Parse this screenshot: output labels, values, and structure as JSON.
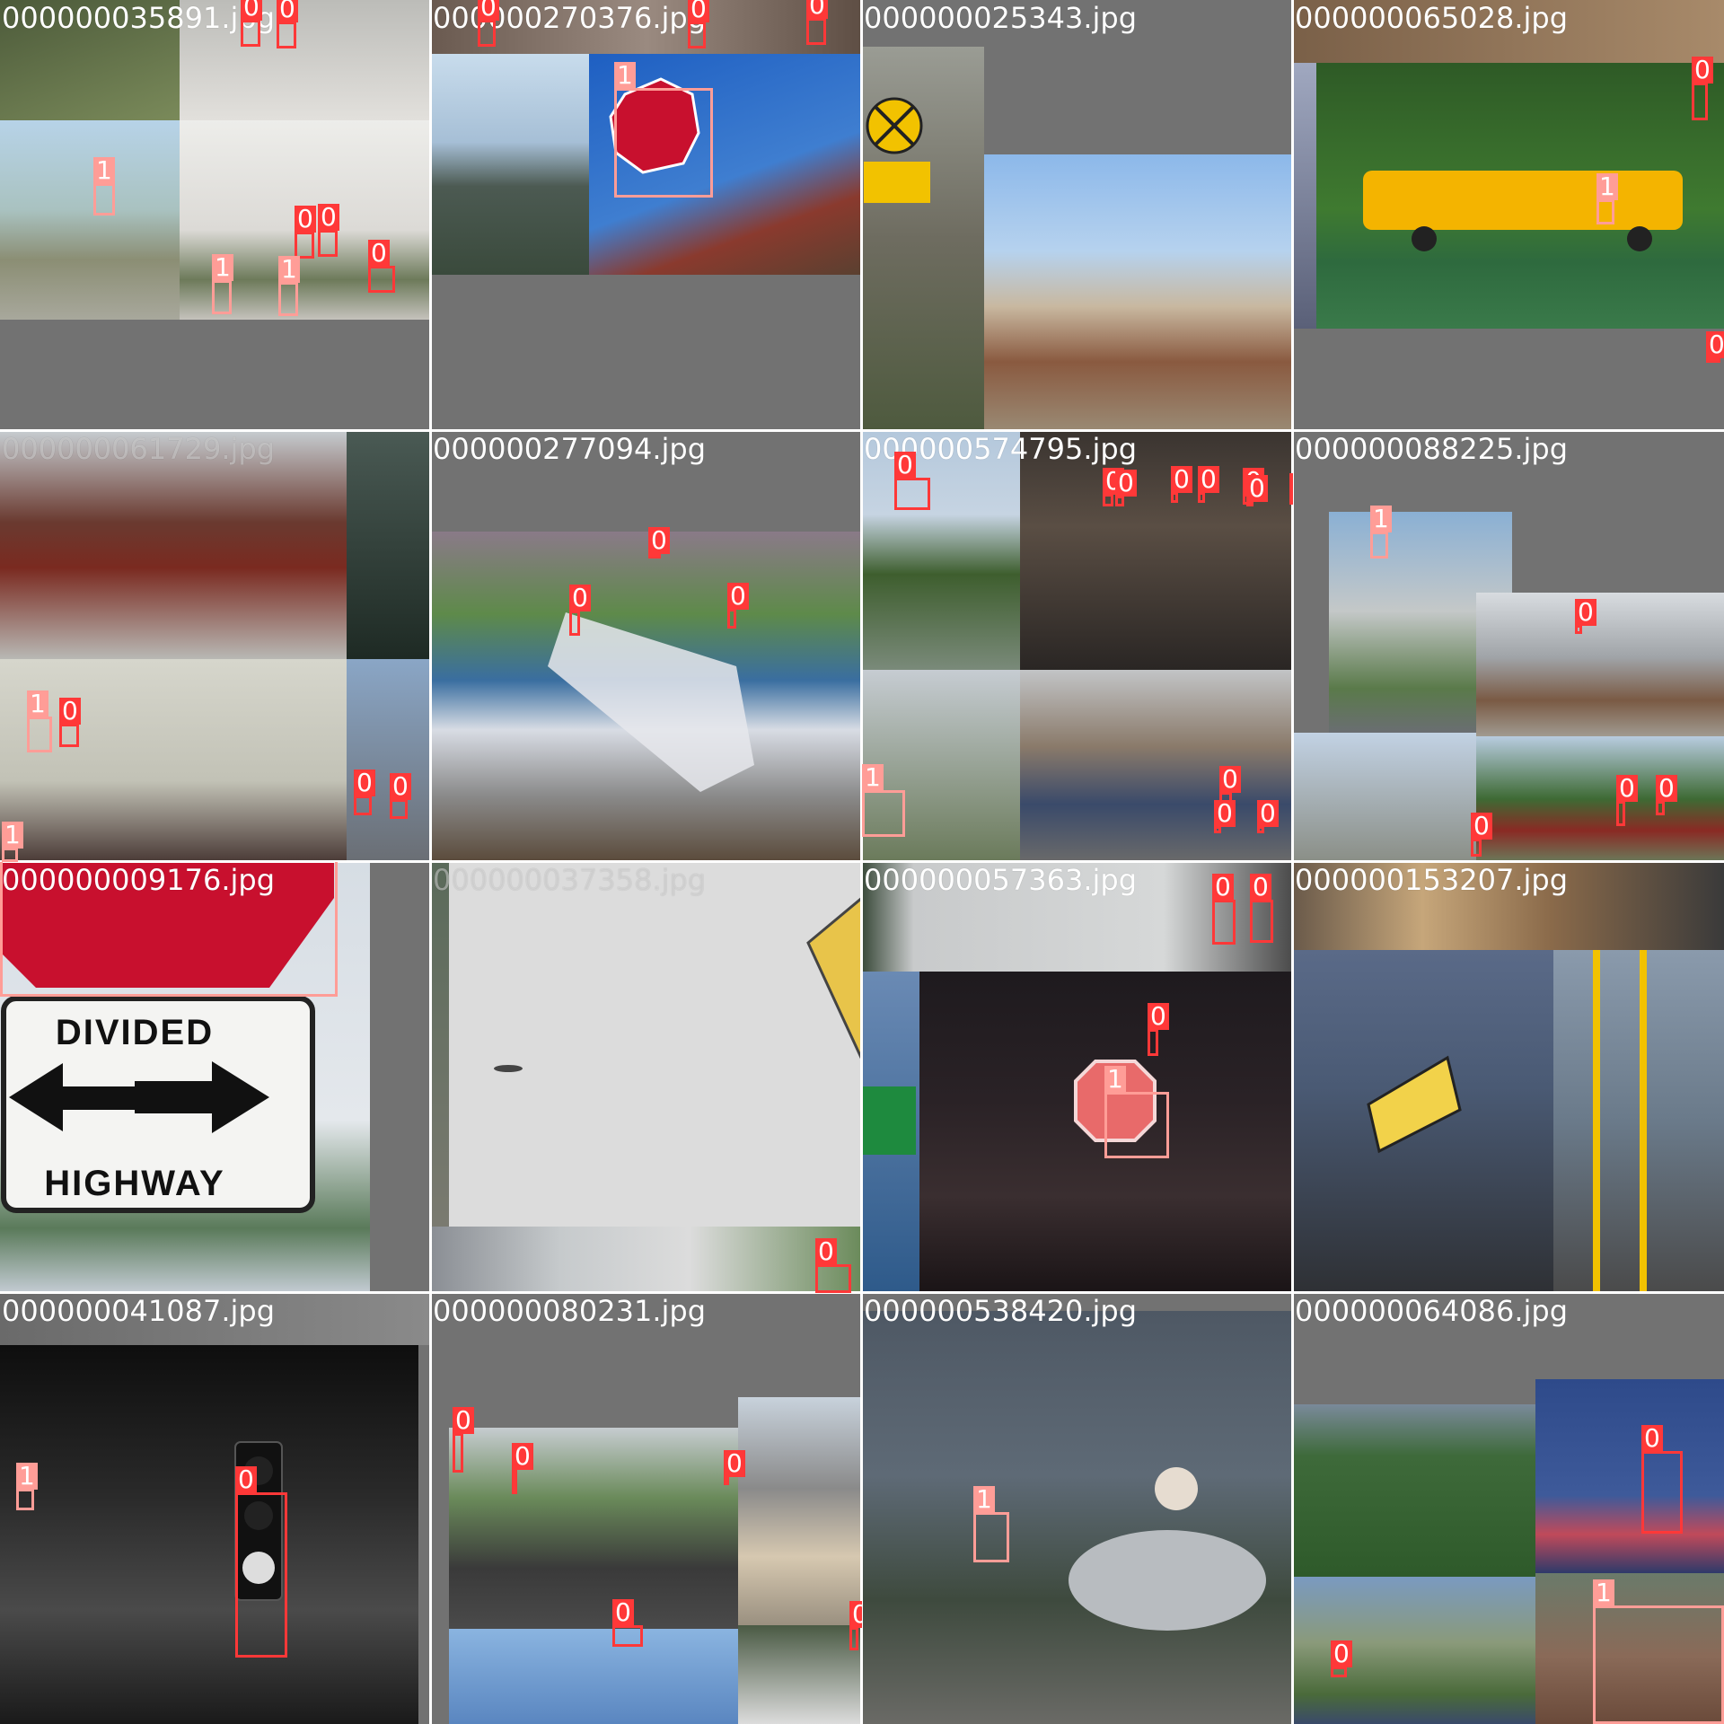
{
  "palette": {
    "class_0": "#ff3838",
    "class_1": "#ff9d97",
    "pad_gray": "#727272"
  },
  "tiles": [
    {
      "filename": "000000035891.jpg",
      "images": [
        {
          "color": "#5a6a3e"
        },
        {
          "color": "#cfcfcc"
        },
        {
          "color": "#8a9a6a"
        },
        {
          "color": "#d8d6d2"
        }
      ],
      "boxes": [
        {
          "cls": "0"
        },
        {
          "cls": "0"
        },
        {
          "cls": "1"
        },
        {
          "cls": "0"
        },
        {
          "cls": "0"
        },
        {
          "cls": "1"
        },
        {
          "cls": "1"
        },
        {
          "cls": "0"
        }
      ]
    },
    {
      "filename": "000000270376.jpg",
      "images": [
        {
          "color": "#5f6e80"
        },
        {
          "color": "#3f6eb5"
        },
        {
          "color": "#6b7d57"
        }
      ],
      "boxes": [
        {
          "cls": "0"
        },
        {
          "cls": "0"
        },
        {
          "cls": "0"
        },
        {
          "cls": "1"
        }
      ]
    },
    {
      "filename": "000000025343.jpg",
      "images": [
        {
          "color": "#7a7766"
        },
        {
          "color": "#8fb5e0"
        }
      ],
      "boxes": []
    },
    {
      "filename": "000000065028.jpg",
      "images": [
        {
          "color": "#3a6a2e"
        }
      ],
      "boxes": [
        {
          "cls": "0"
        },
        {
          "cls": "1"
        },
        {
          "cls": "0"
        }
      ]
    },
    {
      "filename": "000000061729.jpg",
      "images": [
        {
          "color": "#6b6a68"
        },
        {
          "color": "#26352d"
        },
        {
          "color": "#c7c6bd"
        },
        {
          "color": "#9e9c96"
        }
      ],
      "boxes": [
        {
          "cls": "1"
        },
        {
          "cls": "0"
        },
        {
          "cls": "0"
        },
        {
          "cls": "0"
        },
        {
          "cls": "1"
        }
      ]
    },
    {
      "filename": "000000277094.jpg",
      "images": [
        {
          "color": "#6f7a7c"
        }
      ],
      "boxes": [
        {
          "cls": "0"
        },
        {
          "cls": "0"
        },
        {
          "cls": "0"
        }
      ]
    },
    {
      "filename": "000000574795.jpg",
      "images": [
        {
          "color": "#a9c0d6"
        },
        {
          "color": "#3a3430"
        },
        {
          "color": "#93a08a"
        },
        {
          "color": "#8a8f94"
        }
      ],
      "boxes": [
        {
          "cls": "0"
        },
        {
          "cls": "0"
        },
        {
          "cls": "0"
        },
        {
          "cls": "0"
        },
        {
          "cls": "0"
        },
        {
          "cls": "0"
        },
        {
          "cls": "0"
        },
        {
          "cls": "0"
        },
        {
          "cls": "1"
        },
        {
          "cls": "0"
        },
        {
          "cls": "0"
        },
        {
          "cls": "0"
        }
      ]
    },
    {
      "filename": "000000088225.jpg",
      "images": [
        {
          "color": "#7a8ea5"
        },
        {
          "color": "#9b8b7a"
        },
        {
          "color": "#b8c6d6"
        },
        {
          "color": "#5f7a4a"
        }
      ],
      "boxes": [
        {
          "cls": "1"
        },
        {
          "cls": "0"
        },
        {
          "cls": "0"
        },
        {
          "cls": "0"
        },
        {
          "cls": "0"
        }
      ]
    },
    {
      "filename": "000000009176.jpg",
      "images": [
        {
          "color": "#e8e8e8"
        }
      ],
      "boxes": [
        {
          "cls": "1"
        }
      ],
      "sign": {
        "line1": "DIVIDED",
        "line2": "HIGHWAY"
      }
    },
    {
      "filename": "000000037358.jpg",
      "images": [
        {
          "color": "#dcdcdc"
        },
        {
          "color": "#8f9a8a"
        }
      ],
      "boxes": [
        {
          "cls": "0"
        }
      ]
    },
    {
      "filename": "000000057363.jpg",
      "images": [
        {
          "color": "#c8cacb"
        },
        {
          "color": "#1e1a1e"
        },
        {
          "color": "#3a5e8a"
        }
      ],
      "boxes": [
        {
          "cls": "0"
        },
        {
          "cls": "0"
        },
        {
          "cls": "0"
        },
        {
          "cls": "1"
        }
      ]
    },
    {
      "filename": "000000153207.jpg",
      "images": [
        {
          "color": "#4e5a6e"
        },
        {
          "color": "#6d6050"
        }
      ],
      "boxes": []
    },
    {
      "filename": "000000041087.jpg",
      "images": [
        {
          "color": "#1c1c1c"
        }
      ],
      "boxes": [
        {
          "cls": "1"
        },
        {
          "cls": "0"
        }
      ]
    },
    {
      "filename": "000000080231.jpg",
      "images": [
        {
          "color": "#6f8a60"
        },
        {
          "color": "#a9b0b8"
        },
        {
          "color": "#8fb3d9"
        }
      ],
      "boxes": [
        {
          "cls": "0"
        },
        {
          "cls": "0"
        },
        {
          "cls": "0"
        },
        {
          "cls": "0"
        },
        {
          "cls": "0"
        }
      ]
    },
    {
      "filename": "000000538420.jpg",
      "images": [
        {
          "color": "#56606b"
        }
      ],
      "boxes": [
        {
          "cls": "1"
        }
      ]
    },
    {
      "filename": "000000064086.jpg",
      "images": [
        {
          "color": "#3e6a3a"
        },
        {
          "color": "#2e4a8a"
        },
        {
          "color": "#7c8a6c"
        },
        {
          "color": "#8a6a58"
        }
      ],
      "boxes": [
        {
          "cls": "0"
        },
        {
          "cls": "0"
        },
        {
          "cls": "1"
        }
      ]
    }
  ]
}
